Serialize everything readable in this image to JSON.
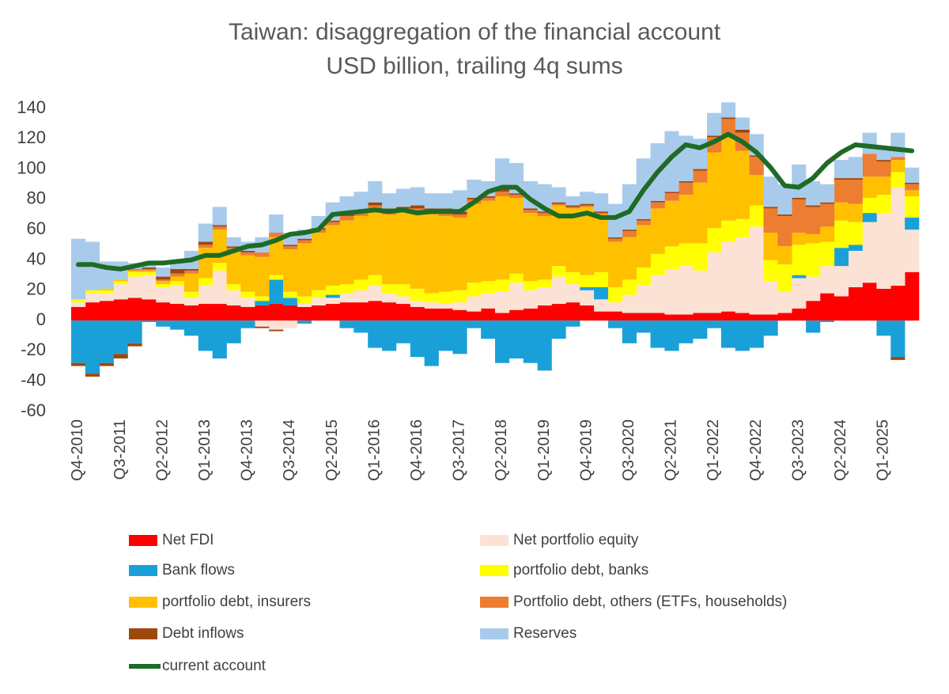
{
  "chart_data": {
    "type": "bar",
    "stacked": true,
    "title": "Taiwan: disaggregation of the financial account",
    "subtitle": "USD billion, trailing 4q sums",
    "categories": [
      "Q4-2010",
      null,
      null,
      "Q3-2011",
      null,
      null,
      "Q2-2012",
      null,
      null,
      "Q1-2013",
      null,
      null,
      "Q4-2013",
      null,
      null,
      "Q3-2014",
      null,
      null,
      "Q2-2015",
      null,
      null,
      "Q1-2016",
      null,
      null,
      "Q4-2016",
      null,
      null,
      "Q3-2017",
      null,
      null,
      "Q2-2018",
      null,
      null,
      "Q1-2019",
      null,
      null,
      "Q4-2019",
      null,
      null,
      "Q3-2020",
      null,
      null,
      "Q2-2021",
      null,
      null,
      "Q1-2022",
      null,
      null,
      "Q4-2022",
      null,
      null,
      "Q3-2023",
      null,
      null,
      "Q2-2024",
      null,
      null,
      "Q1-2025",
      null,
      null
    ],
    "ylim": [
      -60,
      140
    ],
    "yticks": [
      -60,
      -40,
      -20,
      0,
      20,
      40,
      60,
      80,
      100,
      120,
      140
    ],
    "grid": false,
    "series": [
      {
        "name": "Net FDI",
        "color": "#ff0000",
        "values": [
          9,
          12,
          13,
          14,
          15,
          14,
          12,
          11,
          10,
          11,
          11,
          10,
          9,
          10,
          11,
          10,
          9,
          10,
          11,
          12,
          12,
          13,
          12,
          11,
          9,
          8,
          8,
          7,
          6,
          8,
          5,
          7,
          8,
          10,
          11,
          12,
          10,
          6,
          6,
          5,
          5,
          5,
          4,
          4,
          5,
          5,
          6,
          5,
          4,
          4,
          5,
          8,
          13,
          18,
          16,
          22,
          25,
          21,
          23,
          32
        ]
      },
      {
        "name": "Net portfolio equity",
        "color": "#fbe2d5",
        "values": [
          3,
          6,
          5,
          10,
          14,
          16,
          10,
          12,
          5,
          12,
          22,
          10,
          6,
          -4,
          -6,
          -5,
          2,
          5,
          4,
          6,
          8,
          10,
          6,
          5,
          4,
          4,
          3,
          5,
          10,
          10,
          14,
          18,
          12,
          12,
          18,
          12,
          10,
          8,
          6,
          12,
          18,
          25,
          30,
          32,
          28,
          40,
          46,
          50,
          58,
          22,
          14,
          20,
          16,
          18,
          20,
          24,
          40,
          50,
          65,
          28
        ]
      },
      {
        "name": "Bank flows",
        "color": "#1aa0d8",
        "values": [
          -28,
          -35,
          -28,
          -22,
          -15,
          -1,
          -4,
          -6,
          -10,
          -20,
          -25,
          -15,
          -5,
          3,
          16,
          5,
          -2,
          0,
          2,
          -5,
          -8,
          -18,
          -20,
          -15,
          -24,
          -30,
          -20,
          -22,
          -5,
          -12,
          -28,
          -25,
          -28,
          -33,
          -12,
          -4,
          2,
          8,
          -5,
          -15,
          -8,
          -18,
          -20,
          -15,
          -12,
          -5,
          -18,
          -20,
          -18,
          -10,
          0,
          2,
          -8,
          -1,
          12,
          4,
          6,
          -10,
          -24,
          8
        ]
      },
      {
        "name": "portfolio debt, banks",
        "color": "#ffff00",
        "values": [
          2,
          2,
          2,
          2,
          3,
          2,
          2,
          3,
          4,
          5,
          5,
          4,
          4,
          3,
          3,
          4,
          5,
          5,
          6,
          6,
          7,
          7,
          6,
          8,
          8,
          6,
          8,
          8,
          9,
          8,
          8,
          6,
          6,
          5,
          7,
          8,
          8,
          10,
          10,
          10,
          12,
          14,
          15,
          15,
          18,
          16,
          14,
          12,
          14,
          14,
          18,
          20,
          22,
          16,
          18,
          15,
          10,
          12,
          10,
          14
        ]
      },
      {
        "name": "portfolio debt, insurers",
        "color": "#ffc000",
        "values": [
          0,
          0,
          1,
          1,
          1,
          1,
          2,
          3,
          12,
          20,
          22,
          22,
          24,
          26,
          25,
          28,
          35,
          38,
          40,
          42,
          42,
          44,
          46,
          48,
          50,
          52,
          50,
          48,
          52,
          53,
          55,
          50,
          45,
          42,
          40,
          42,
          45,
          38,
          30,
          28,
          28,
          30,
          30,
          32,
          40,
          50,
          55,
          45,
          20,
          18,
          12,
          8,
          6,
          10,
          12,
          12,
          14,
          12,
          8,
          4
        ]
      },
      {
        "name": "Portfolio debt, others (ETFs, households)",
        "color": "#ed7d31",
        "values": [
          0,
          0,
          0,
          0,
          1,
          1,
          1,
          2,
          2,
          2,
          2,
          2,
          2,
          3,
          3,
          2,
          2,
          2,
          2,
          3,
          2,
          2,
          2,
          2,
          3,
          3,
          3,
          2,
          3,
          2,
          3,
          2,
          2,
          2,
          1,
          1,
          1,
          1,
          2,
          4,
          3,
          4,
          5,
          8,
          8,
          10,
          12,
          12,
          12,
          16,
          20,
          22,
          18,
          15,
          15,
          16,
          15,
          10,
          2,
          4
        ]
      },
      {
        "name": "Debt inflows",
        "color": "#9e480e",
        "values": [
          -2,
          -2,
          -2,
          -3,
          -2,
          1,
          2,
          3,
          1,
          2,
          1,
          1,
          1,
          -1,
          -1,
          1,
          1,
          1,
          1,
          1,
          2,
          2,
          2,
          1,
          2,
          1,
          2,
          2,
          1,
          1,
          2,
          1,
          1,
          1,
          1,
          1,
          1,
          1,
          1,
          1,
          1,
          1,
          1,
          1,
          1,
          1,
          1,
          2,
          1,
          1,
          1,
          1,
          1,
          1,
          1,
          1,
          0,
          1,
          -2,
          1
        ]
      },
      {
        "name": "Reserves",
        "color": "#a9cbeb",
        "values": [
          40,
          32,
          18,
          12,
          4,
          2,
          6,
          5,
          12,
          12,
          12,
          6,
          6,
          10,
          12,
          8,
          6,
          8,
          12,
          12,
          12,
          14,
          10,
          12,
          12,
          10,
          10,
          14,
          12,
          10,
          20,
          20,
          18,
          18,
          10,
          6,
          8,
          12,
          22,
          30,
          40,
          38,
          40,
          30,
          20,
          15,
          10,
          8,
          14,
          20,
          20,
          22,
          16,
          12,
          12,
          14,
          14,
          8,
          16,
          10
        ]
      },
      {
        "name": "current account",
        "type": "line",
        "color": "#1e6b25",
        "values": [
          37,
          37,
          35,
          34,
          36,
          38,
          38,
          39,
          40,
          43,
          43,
          46,
          49,
          50,
          53,
          57,
          58,
          60,
          70,
          71,
          72,
          73,
          72,
          73,
          71,
          72,
          72,
          72,
          78,
          85,
          88,
          88,
          80,
          74,
          69,
          69,
          71,
          68,
          68,
          72,
          86,
          98,
          108,
          116,
          114,
          118,
          123,
          118,
          111,
          101,
          89,
          88,
          94,
          104,
          111,
          116,
          115,
          114,
          113,
          112
        ]
      }
    ]
  }
}
